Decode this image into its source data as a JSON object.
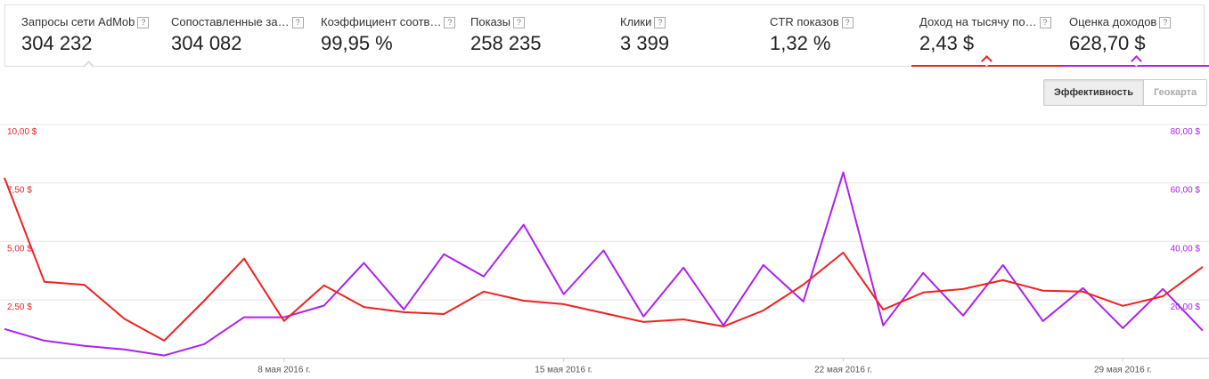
{
  "metrics": {
    "help": "?",
    "items": [
      {
        "label": "Запросы сети AdMob",
        "value": "304 232"
      },
      {
        "label": "Сопоставленные за…",
        "value": "304 082"
      },
      {
        "label": "Коэффициент соотв…",
        "value": "99,95 %"
      },
      {
        "label": "Показы",
        "value": "258 235"
      },
      {
        "label": "Клики",
        "value": "3 399"
      },
      {
        "label": "CTR показов",
        "value": "1,32 %"
      },
      {
        "label": "Доход на тысячу по…",
        "value": "2,43 $",
        "color": "#ee2222"
      },
      {
        "label": "Оценка доходов",
        "value": "628,70 $",
        "color": "#aa22ee"
      }
    ]
  },
  "tabs": [
    "Эффективность",
    "Геокарта"
  ],
  "chart_data": {
    "type": "line",
    "categories": [
      null,
      null,
      null,
      null,
      null,
      null,
      null,
      "8 мая 2016 г.",
      null,
      null,
      null,
      null,
      null,
      null,
      "15 мая 2016 г.",
      null,
      null,
      null,
      null,
      null,
      null,
      "22 мая 2016 г.",
      null,
      null,
      null,
      null,
      null,
      null,
      "29 мая 2016 г.",
      null,
      null
    ],
    "series": [
      {
        "color": "#ee2222",
        "values": [
          7.72,
          3.27,
          3.14,
          1.69,
          0.75,
          2.46,
          4.26,
          1.59,
          3.12,
          2.19,
          1.97,
          1.89,
          2.85,
          2.46,
          2.31,
          1.93,
          1.55,
          1.66,
          1.36,
          2.04,
          3.15,
          4.52,
          2.08,
          2.81,
          2.96,
          3.34,
          2.89,
          2.85,
          2.24,
          2.65,
          3.91
        ]
      },
      {
        "color": "#aa22ee",
        "axis": "y2",
        "values": [
          10.0,
          6.0,
          4.2,
          3.0,
          0.9,
          4.8,
          14.0,
          14.0,
          18.0,
          32.6,
          16.7,
          35.6,
          28.0,
          45.7,
          21.9,
          36.9,
          14.3,
          31.0,
          11.2,
          31.9,
          19.4,
          63.6,
          11.2,
          29.2,
          14.6,
          31.9,
          12.7,
          24.0,
          10.3,
          23.7,
          9.4
        ]
      }
    ],
    "ylim": [
      0,
      10
    ],
    "yticks": [
      {
        "value": 2.5,
        "label": "2,50 $"
      },
      {
        "value": 5,
        "label": "5,00 $"
      },
      {
        "value": 7.5,
        "label": "7,50 $"
      },
      {
        "value": 10,
        "label": "10,00 $"
      }
    ],
    "y2lim": [
      0,
      80
    ],
    "y2ticks": [
      {
        "value": 20,
        "label": "20,00 $"
      },
      {
        "value": 40,
        "label": "40,00 $"
      },
      {
        "value": 60,
        "label": "60,00 $"
      },
      {
        "value": 80,
        "label": "80,00 $"
      }
    ],
    "grid": true
  }
}
